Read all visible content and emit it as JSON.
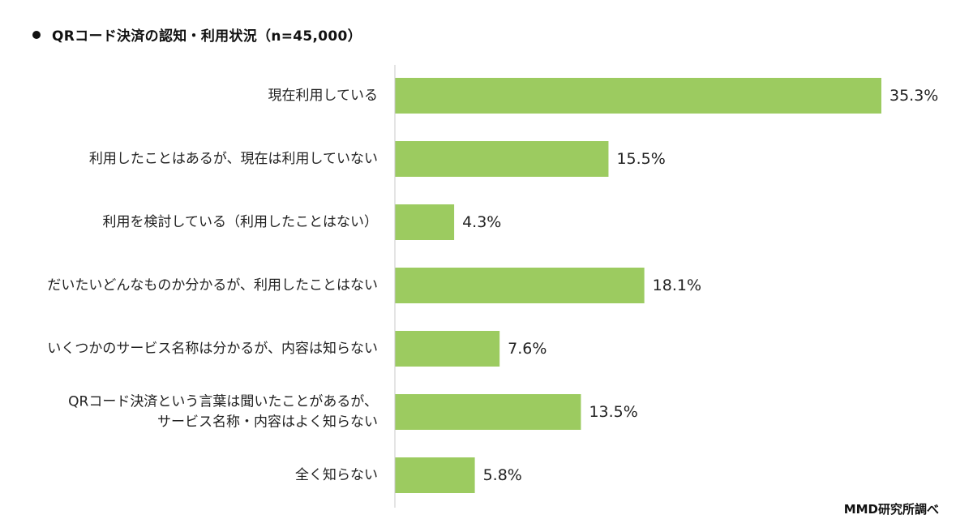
{
  "title": "QRコード決済の認知・利用状況（n=45,000）",
  "source": "MMD研究所調べ",
  "colors": {
    "bar": "#9ccb60",
    "axis": "#c8c8c8",
    "text": "#222222"
  },
  "chart_data": {
    "type": "bar",
    "orientation": "horizontal",
    "unit": "%",
    "xlim": [
      0,
      35.3
    ],
    "grid": false,
    "categories": [
      [
        "現在利用している"
      ],
      [
        "利用したことはあるが、現在は利用していない"
      ],
      [
        "利用を検討している（利用したことはない）"
      ],
      [
        "だいたいどんなものか分かるが、利用したことはない"
      ],
      [
        "いくつかのサービス名称は分かるが、内容は知らない"
      ],
      [
        "QRコード決済という言葉は聞いたことがあるが、",
        "サービス名称・内容はよく知らない"
      ],
      [
        "全く知らない"
      ]
    ],
    "values": [
      35.3,
      15.5,
      4.3,
      18.1,
      7.6,
      13.5,
      5.8
    ],
    "value_labels": [
      "35.3%",
      "15.5%",
      "4.3%",
      "18.1%",
      "7.6%",
      "13.5%",
      "5.8%"
    ]
  }
}
